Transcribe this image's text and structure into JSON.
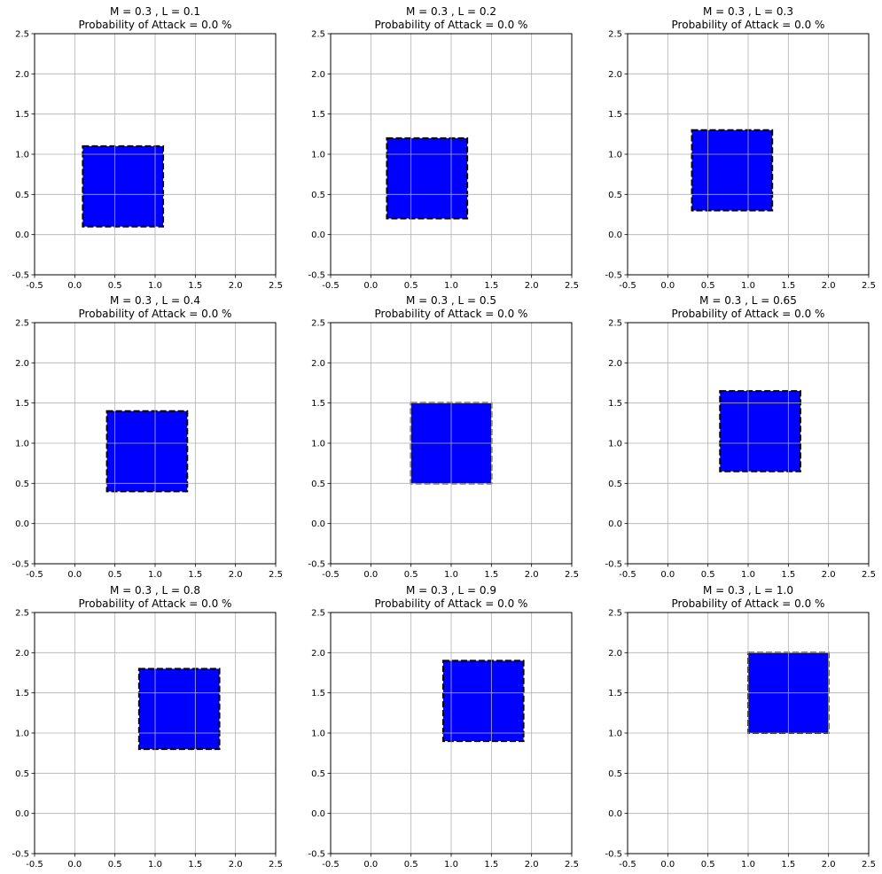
{
  "chart_data": [
    {
      "type": "area",
      "title": [
        "M = 0.3 , L = 0.1",
        "Probability of Attack = 0.0 %"
      ],
      "xlim": [
        -0.5,
        2.5
      ],
      "ylim": [
        -0.5,
        2.5
      ],
      "xticks": [
        "-0.5",
        "0.0",
        "0.5",
        "1.0",
        "1.5",
        "2.0",
        "2.5"
      ],
      "yticks": [
        "-0.5",
        "0.0",
        "0.5",
        "1.0",
        "1.5",
        "2.0",
        "2.5"
      ],
      "grid": true,
      "region": {
        "x": [
          0.1,
          1.1
        ],
        "y": [
          0.1,
          1.1
        ],
        "fill": "#0000ff",
        "edge": "dashed"
      }
    },
    {
      "type": "area",
      "title": [
        "M = 0.3 , L = 0.2",
        "Probability of Attack = 0.0 %"
      ],
      "xlim": [
        -0.5,
        2.5
      ],
      "ylim": [
        -0.5,
        2.5
      ],
      "xticks": [
        "-0.5",
        "0.0",
        "0.5",
        "1.0",
        "1.5",
        "2.0",
        "2.5"
      ],
      "yticks": [
        "-0.5",
        "0.0",
        "0.5",
        "1.0",
        "1.5",
        "2.0",
        "2.5"
      ],
      "grid": true,
      "region": {
        "x": [
          0.2,
          1.2
        ],
        "y": [
          0.2,
          1.2
        ],
        "fill": "#0000ff",
        "edge": "dashed"
      }
    },
    {
      "type": "area",
      "title": [
        "M = 0.3 , L = 0.3",
        "Probability of Attack = 0.0 %"
      ],
      "xlim": [
        -0.5,
        2.5
      ],
      "ylim": [
        -0.5,
        2.5
      ],
      "xticks": [
        "-0.5",
        "0.0",
        "0.5",
        "1.0",
        "1.5",
        "2.0",
        "2.5"
      ],
      "yticks": [
        "-0.5",
        "0.0",
        "0.5",
        "1.0",
        "1.5",
        "2.0",
        "2.5"
      ],
      "grid": true,
      "region": {
        "x": [
          0.3,
          1.3
        ],
        "y": [
          0.3,
          1.3
        ],
        "fill": "#0000ff",
        "edge": "dashed"
      }
    },
    {
      "type": "area",
      "title": [
        "M = 0.3 , L = 0.4",
        "Probability of Attack = 0.0 %"
      ],
      "xlim": [
        -0.5,
        2.5
      ],
      "ylim": [
        -0.5,
        2.5
      ],
      "xticks": [
        "-0.5",
        "0.0",
        "0.5",
        "1.0",
        "1.5",
        "2.0",
        "2.5"
      ],
      "yticks": [
        "-0.5",
        "0.0",
        "0.5",
        "1.0",
        "1.5",
        "2.0",
        "2.5"
      ],
      "grid": true,
      "region": {
        "x": [
          0.4,
          1.4
        ],
        "y": [
          0.4,
          1.4
        ],
        "fill": "#0000ff",
        "edge": "dashed"
      }
    },
    {
      "type": "area",
      "title": [
        "M = 0.3 , L = 0.5",
        "Probability of Attack = 0.0 %"
      ],
      "xlim": [
        -0.5,
        2.5
      ],
      "ylim": [
        -0.5,
        2.5
      ],
      "xticks": [
        "-0.5",
        "0.0",
        "0.5",
        "1.0",
        "1.5",
        "2.0",
        "2.5"
      ],
      "yticks": [
        "-0.5",
        "0.0",
        "0.5",
        "1.0",
        "1.5",
        "2.0",
        "2.5"
      ],
      "grid": true,
      "region": {
        "x": [
          0.5,
          1.5
        ],
        "y": [
          0.5,
          1.5
        ],
        "fill": "#0000ff",
        "edge": "dashed"
      }
    },
    {
      "type": "area",
      "title": [
        "M = 0.3 , L = 0.65",
        "Probability of Attack = 0.0 %"
      ],
      "xlim": [
        -0.5,
        2.5
      ],
      "ylim": [
        -0.5,
        2.5
      ],
      "xticks": [
        "-0.5",
        "0.0",
        "0.5",
        "1.0",
        "1.5",
        "2.0",
        "2.5"
      ],
      "yticks": [
        "-0.5",
        "0.0",
        "0.5",
        "1.0",
        "1.5",
        "2.0",
        "2.5"
      ],
      "grid": true,
      "region": {
        "x": [
          0.65,
          1.65
        ],
        "y": [
          0.65,
          1.65
        ],
        "fill": "#0000ff",
        "edge": "dashed"
      }
    },
    {
      "type": "area",
      "title": [
        "M = 0.3 , L = 0.8",
        "Probability of Attack = 0.0 %"
      ],
      "xlim": [
        -0.5,
        2.5
      ],
      "ylim": [
        -0.5,
        2.5
      ],
      "xticks": [
        "-0.5",
        "0.0",
        "0.5",
        "1.0",
        "1.5",
        "2.0",
        "2.5"
      ],
      "yticks": [
        "-0.5",
        "0.0",
        "0.5",
        "1.0",
        "1.5",
        "2.0",
        "2.5"
      ],
      "grid": true,
      "region": {
        "x": [
          0.8,
          1.8
        ],
        "y": [
          0.8,
          1.8
        ],
        "fill": "#0000ff",
        "edge": "dashed"
      }
    },
    {
      "type": "area",
      "title": [
        "M = 0.3 , L = 0.9",
        "Probability of Attack = 0.0 %"
      ],
      "xlim": [
        -0.5,
        2.5
      ],
      "ylim": [
        -0.5,
        2.5
      ],
      "xticks": [
        "-0.5",
        "0.0",
        "0.5",
        "1.0",
        "1.5",
        "2.0",
        "2.5"
      ],
      "yticks": [
        "-0.5",
        "0.0",
        "0.5",
        "1.0",
        "1.5",
        "2.0",
        "2.5"
      ],
      "grid": true,
      "region": {
        "x": [
          0.9,
          1.9
        ],
        "y": [
          0.9,
          1.9
        ],
        "fill": "#0000ff",
        "edge": "dashed"
      }
    },
    {
      "type": "area",
      "title": [
        "M = 0.3 , L = 1.0",
        "Probability of Attack = 0.0 %"
      ],
      "xlim": [
        -0.5,
        2.5
      ],
      "ylim": [
        -0.5,
        2.5
      ],
      "xticks": [
        "-0.5",
        "0.0",
        "0.5",
        "1.0",
        "1.5",
        "2.0",
        "2.5"
      ],
      "yticks": [
        "-0.5",
        "0.0",
        "0.5",
        "1.0",
        "1.5",
        "2.0",
        "2.5"
      ],
      "grid": true,
      "region": {
        "x": [
          1.0,
          2.0
        ],
        "y": [
          1.0,
          2.0
        ],
        "fill": "#0000ff",
        "edge": "dashed"
      }
    }
  ]
}
